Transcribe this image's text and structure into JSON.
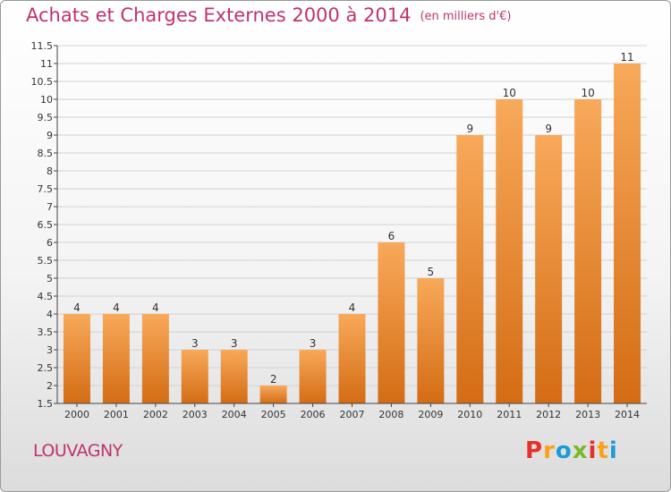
{
  "header": {
    "title": "Achats et Charges Externes 2000 à 2014",
    "unit": "(en milliers d'€)"
  },
  "footer": {
    "commune": "LOUVAGNY",
    "logo_text": "Proxiti",
    "logo_colors": [
      "#e6302b",
      "#f7a21b",
      "#1e9bd7",
      "#7ab828",
      "#e6302b",
      "#f7a21b",
      "#1e9bd7"
    ]
  },
  "colors": {
    "bar_light": "#f8a95a",
    "bar_dark": "#d46c14",
    "title": "#c0336e"
  },
  "chart_data": {
    "type": "bar",
    "title": "Achats et Charges Externes 2000 à 2014",
    "subtitle": "(en milliers d'€)",
    "xlabel": "",
    "ylabel": "",
    "categories": [
      "2000",
      "2001",
      "2002",
      "2003",
      "2004",
      "2005",
      "2006",
      "2007",
      "2008",
      "2009",
      "2010",
      "2011",
      "2012",
      "2013",
      "2014"
    ],
    "values": [
      4,
      4,
      4,
      3,
      3,
      2,
      3,
      4,
      6,
      5,
      9,
      10,
      9,
      10,
      11
    ],
    "data_labels": [
      "4",
      "4",
      "4",
      "3",
      "3",
      "2",
      "3",
      "4",
      "6",
      "5",
      "9",
      "10",
      "9",
      "10",
      "11"
    ],
    "ylim": [
      1.5,
      11.5
    ],
    "yticks": [
      1.5,
      2,
      2.5,
      3,
      3.5,
      4,
      4.5,
      5,
      5.5,
      6,
      6.5,
      7,
      7.5,
      8,
      8.5,
      9,
      9.5,
      10,
      10.5,
      11,
      11.5
    ],
    "ytick_labels": [
      "1.5",
      "2",
      "2.5",
      "3",
      "3.5",
      "4",
      "4.5",
      "5",
      "5.5",
      "6",
      "6.5",
      "7",
      "7.5",
      "8",
      "8.5",
      "9",
      "9.5",
      "10",
      "10.5",
      "11",
      "11.5"
    ],
    "grid": true,
    "legend": "none"
  }
}
